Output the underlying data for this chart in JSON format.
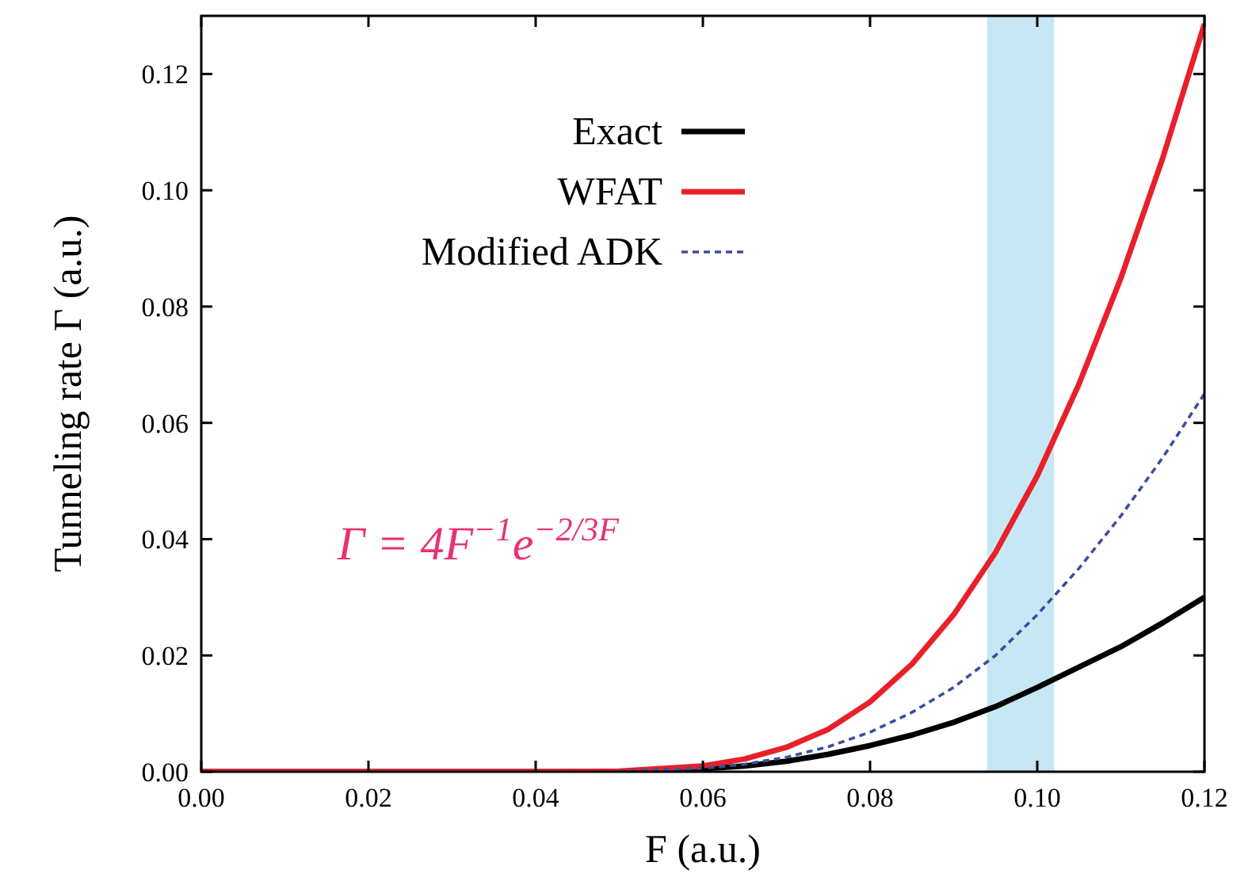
{
  "chart_data": {
    "type": "line",
    "xlabel": "F (a.u.)",
    "ylabel": "Tunneling rate Γ (a.u.)",
    "xlim": [
      0,
      0.12
    ],
    "ylim": [
      0,
      0.13
    ],
    "xticks": [
      {
        "value": 0,
        "label": "0.00"
      },
      {
        "value": 0.02,
        "label": "0.02"
      },
      {
        "value": 0.04,
        "label": "0.04"
      },
      {
        "value": 0.06,
        "label": "0.06"
      },
      {
        "value": 0.08,
        "label": "0.08"
      },
      {
        "value": 0.1,
        "label": "0.10"
      },
      {
        "value": 0.12,
        "label": "0.12"
      }
    ],
    "yticks": [
      {
        "value": 0,
        "label": "0.00"
      },
      {
        "value": 0.02,
        "label": "0.02"
      },
      {
        "value": 0.04,
        "label": "0.04"
      },
      {
        "value": 0.06,
        "label": "0.06"
      },
      {
        "value": 0.08,
        "label": "0.08"
      },
      {
        "value": 0.1,
        "label": "0.10"
      },
      {
        "value": 0.12,
        "label": "0.12"
      }
    ],
    "x": [
      0,
      0.02,
      0.04,
      0.05,
      0.06,
      0.065,
      0.07,
      0.075,
      0.08,
      0.085,
      0.09,
      0.095,
      0.1,
      0.105,
      0.11,
      0.115,
      0.12
    ],
    "series": [
      {
        "name": "Exact",
        "color": "#000000",
        "line_style": "solid",
        "values": [
          0,
          0,
          0,
          0,
          0.0005,
          0.001,
          0.0018,
          0.003,
          0.0045,
          0.0063,
          0.0085,
          0.0112,
          0.0145,
          0.018,
          0.0215,
          0.0256,
          0.03
        ]
      },
      {
        "name": "WFAT",
        "color": "#e8202a",
        "line_style": "solid",
        "values": [
          0,
          0,
          0,
          0.0001,
          0.001,
          0.0022,
          0.0042,
          0.0073,
          0.012,
          0.0185,
          0.027,
          0.0377,
          0.0509,
          0.0667,
          0.0849,
          0.1055,
          0.1286
        ]
      },
      {
        "name": "Modified ADK",
        "color": "#3a4fa0",
        "line_style": "dashed",
        "values": [
          null,
          null,
          null,
          0.0001,
          0.0006,
          0.0013,
          0.0025,
          0.0043,
          0.0068,
          0.0102,
          0.0145,
          0.02,
          0.027,
          0.035,
          0.044,
          0.054,
          0.065
        ]
      }
    ],
    "bands": [
      {
        "axis": "x",
        "from": 0.094,
        "to": 0.102,
        "color": "#c6e7f3"
      }
    ],
    "annotations": [
      "Γ = 4F$^{−1}$e$^{−2/3F}$"
    ],
    "legend": "top",
    "grid": false
  }
}
